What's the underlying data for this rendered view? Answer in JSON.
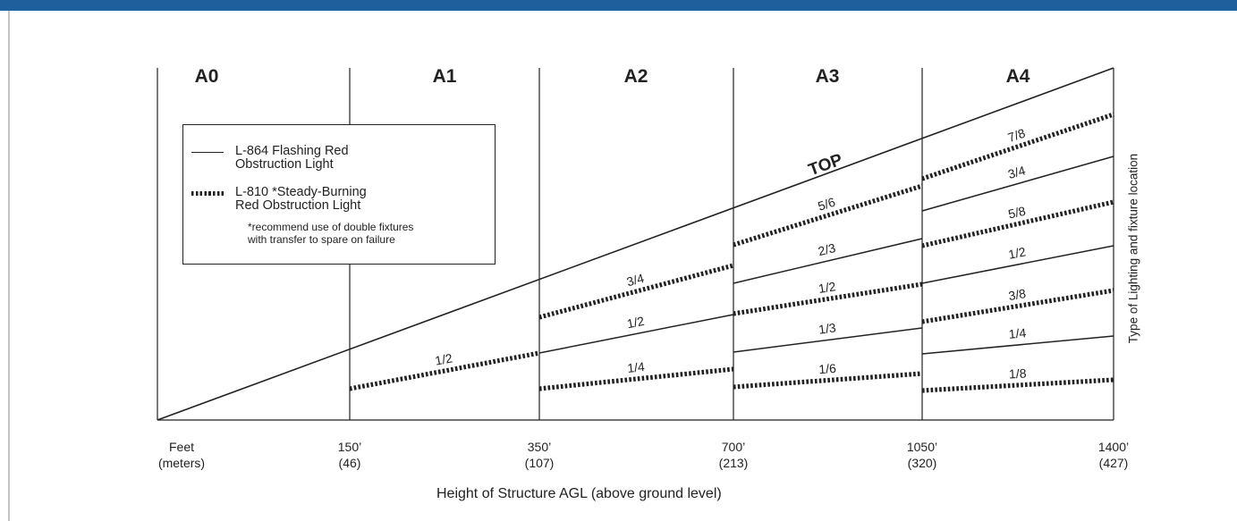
{
  "zones": [
    "A0",
    "A1",
    "A2",
    "A3",
    "A4"
  ],
  "ticks": [
    {
      "feet": "Feet",
      "meters": "(meters)"
    },
    {
      "feet": "150’",
      "meters": "(46)"
    },
    {
      "feet": "350’",
      "meters": "(107)"
    },
    {
      "feet": "700’",
      "meters": "(213)"
    },
    {
      "feet": "1050’",
      "meters": "(320)"
    },
    {
      "feet": "1400’",
      "meters": "(427)"
    }
  ],
  "top_label": "TOP",
  "x_axis_title": "Height of Structure AGL (above ground level)",
  "y_axis_title": "Type of Lighting and fixture location",
  "legend": {
    "l864": "L-864 Flashing Red\nObstruction Light",
    "l810": "L-810 *Steady-Burning\nRed Obstruction Light",
    "note": "*recommend use of double fixtures\nwith transfer to spare on failure"
  },
  "fractions": {
    "A1": [
      "1/2"
    ],
    "A2": [
      "3/4",
      "1/2",
      "1/4"
    ],
    "A3": [
      "5/6",
      "2/3",
      "1/2",
      "1/3",
      "1/6"
    ],
    "A4": [
      "7/8",
      "3/4",
      "5/8",
      "1/2",
      "3/8",
      "1/4",
      "1/8"
    ]
  },
  "colors": {
    "header_bar": "#1f5f9c",
    "ink": "#222222"
  }
}
